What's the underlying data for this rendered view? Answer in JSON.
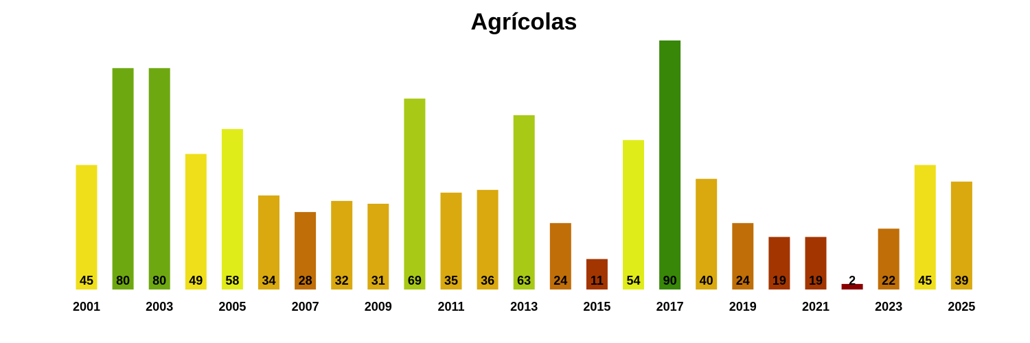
{
  "chart_data": {
    "type": "bar",
    "title": "Agrícolas",
    "xlabel": "",
    "ylabel": "",
    "ylim": [
      0,
      90
    ],
    "grid": false,
    "legend": "none",
    "categories": [
      "2001",
      "2002",
      "2003",
      "2004",
      "2005",
      "2006",
      "2007",
      "2008",
      "2009",
      "2010",
      "2011",
      "2012",
      "2013",
      "2014",
      "2015",
      "2016",
      "2017",
      "2018",
      "2019",
      "2020",
      "2021",
      "2022",
      "2023",
      "2024",
      "2025"
    ],
    "x_tick_labels": [
      "2001",
      "2003",
      "2005",
      "2007",
      "2009",
      "2011",
      "2013",
      "2015",
      "2017",
      "2019",
      "2021",
      "2023",
      "2025"
    ],
    "values": [
      45,
      80,
      80,
      49,
      58,
      34,
      28,
      32,
      31,
      69,
      35,
      36,
      63,
      24,
      11,
      54,
      90,
      40,
      24,
      19,
      19,
      2,
      22,
      45,
      39
    ],
    "colors": [
      "#EFDF1A",
      "#6EA810",
      "#6EA810",
      "#EFDF1A",
      "#E0EC19",
      "#D9A90F",
      "#C06E08",
      "#D9A90F",
      "#D9A90F",
      "#A8C916",
      "#D9A90F",
      "#D9A90F",
      "#A8C916",
      "#C06E08",
      "#A33500",
      "#E0EC19",
      "#388708",
      "#D9A90F",
      "#C06E08",
      "#A33500",
      "#A33500",
      "#8B0000",
      "#C06E08",
      "#EFDF1A",
      "#D9A90F"
    ]
  }
}
